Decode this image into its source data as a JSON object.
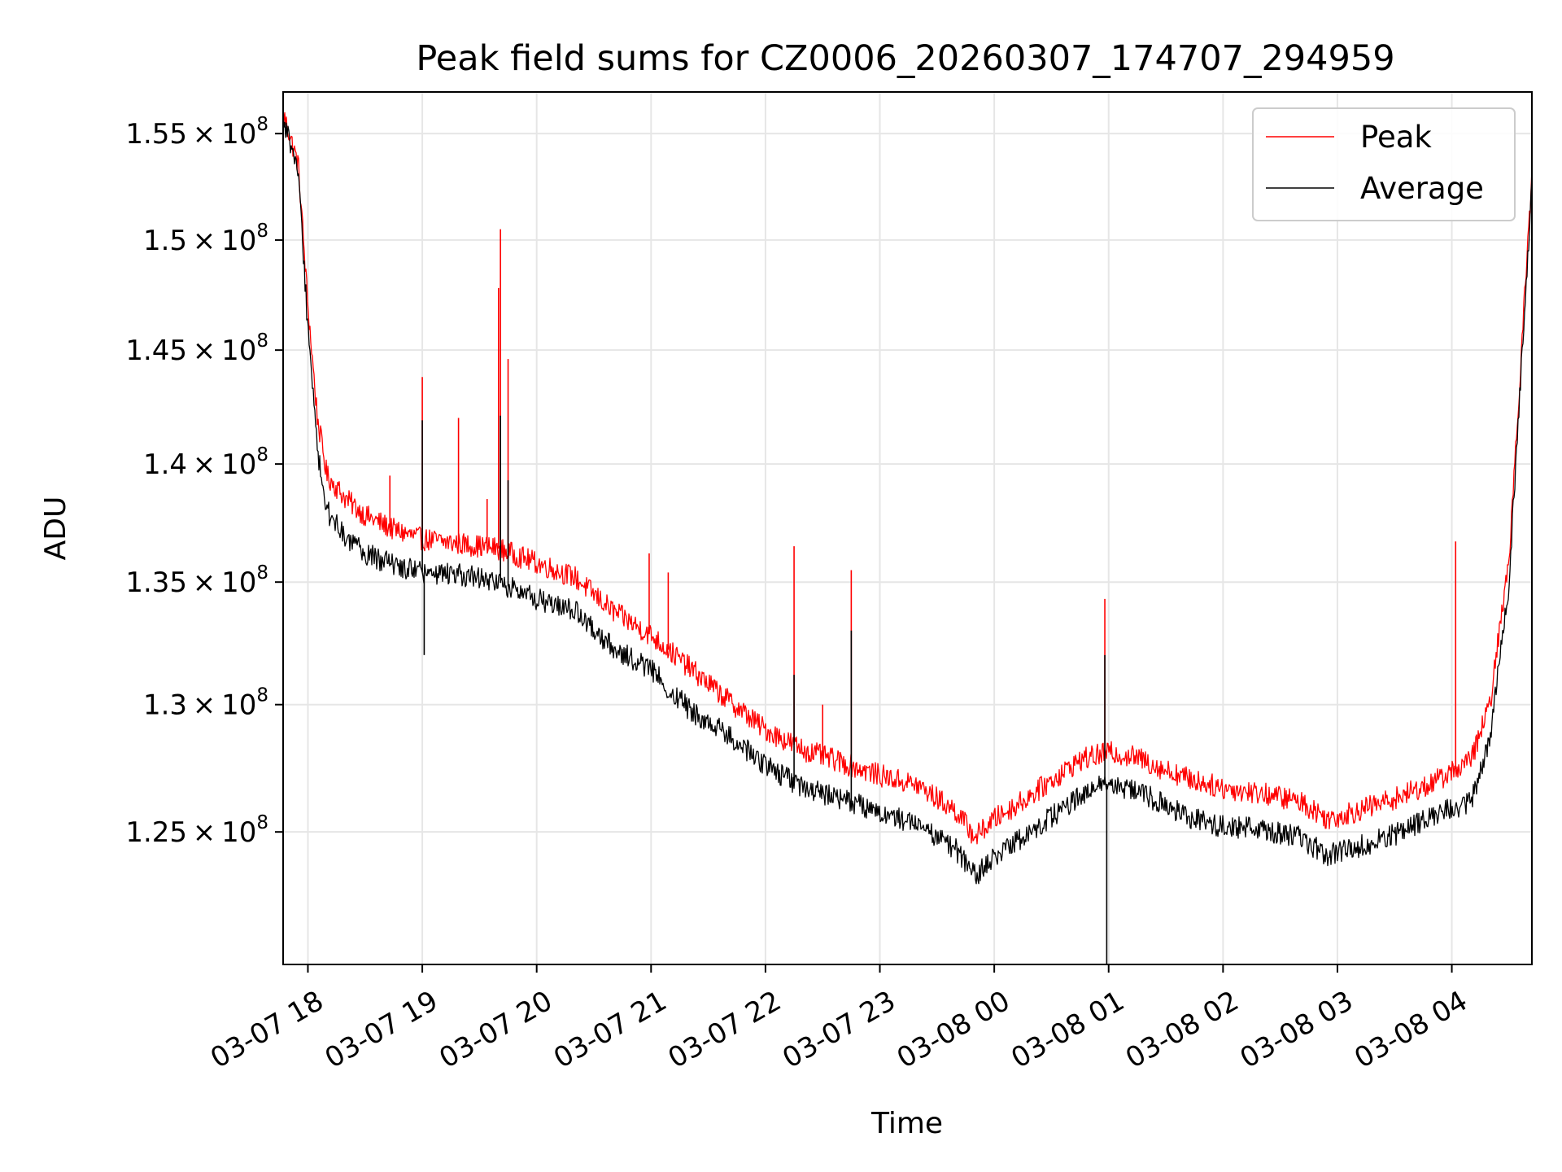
{
  "chart_data": {
    "type": "line",
    "title": "Peak field sums for CZ0006_20260307_174707_294959",
    "xlabel": "Time",
    "ylabel": "ADU",
    "y_scale": "log",
    "ylim": [
      120000000,
      157000000
    ],
    "xlim": [
      "2026-03-07 17:47",
      "2026-03-08 04:42"
    ],
    "x_ticks": [
      {
        "t": "2026-03-07 18:00",
        "label": "03-07 18"
      },
      {
        "t": "2026-03-07 19:00",
        "label": "03-07 19"
      },
      {
        "t": "2026-03-07 20:00",
        "label": "03-07 20"
      },
      {
        "t": "2026-03-07 21:00",
        "label": "03-07 21"
      },
      {
        "t": "2026-03-07 22:00",
        "label": "03-07 22"
      },
      {
        "t": "2026-03-07 23:00",
        "label": "03-07 23"
      },
      {
        "t": "2026-03-08 00:00",
        "label": "03-08 00"
      },
      {
        "t": "2026-03-08 01:00",
        "label": "03-08 01"
      },
      {
        "t": "2026-03-08 02:00",
        "label": "03-08 02"
      },
      {
        "t": "2026-03-08 03:00",
        "label": "03-08 03"
      },
      {
        "t": "2026-03-08 04:00",
        "label": "03-08 04"
      }
    ],
    "y_ticks": [
      {
        "v": 125000000,
        "mant": "1.25",
        "exp": "8"
      },
      {
        "v": 130000000,
        "mant": "1.3",
        "exp": "8"
      },
      {
        "v": 135000000,
        "mant": "1.35",
        "exp": "8"
      },
      {
        "v": 140000000,
        "mant": "1.4",
        "exp": "8"
      },
      {
        "v": 145000000,
        "mant": "1.45",
        "exp": "8"
      },
      {
        "v": 150000000,
        "mant": "1.5",
        "exp": "8"
      },
      {
        "v": 155000000,
        "mant": "1.55",
        "exp": "8"
      }
    ],
    "grid": true,
    "legend_position": "top-right",
    "series": [
      {
        "name": "Peak",
        "color": "#ff0000",
        "points": [
          [
            "2026-03-07 17:47",
            156000000
          ],
          [
            "2026-03-07 17:55",
            153500000
          ],
          [
            "2026-03-07 18:00",
            147000000
          ],
          [
            "2026-03-07 18:05",
            142000000
          ],
          [
            "2026-03-07 18:10",
            139500000
          ],
          [
            "2026-03-07 18:20",
            138500000
          ],
          [
            "2026-03-07 18:30",
            137800000
          ],
          [
            "2026-03-07 18:45",
            137200000
          ],
          [
            "2026-03-07 19:00",
            136800000
          ],
          [
            "2026-03-07 19:20",
            136600000
          ],
          [
            "2026-03-07 19:40",
            136400000
          ],
          [
            "2026-03-07 20:00",
            135800000
          ],
          [
            "2026-03-07 20:20",
            135200000
          ],
          [
            "2026-03-07 20:40",
            133800000
          ],
          [
            "2026-03-07 21:00",
            132800000
          ],
          [
            "2026-03-07 21:20",
            131500000
          ],
          [
            "2026-03-07 21:40",
            130200000
          ],
          [
            "2026-03-07 22:00",
            129000000
          ],
          [
            "2026-03-07 22:20",
            128200000
          ],
          [
            "2026-03-07 22:40",
            127700000
          ],
          [
            "2026-03-07 23:00",
            127200000
          ],
          [
            "2026-03-07 23:20",
            126800000
          ],
          [
            "2026-03-07 23:40",
            125800000
          ],
          [
            "2026-03-07 23:50",
            124800000
          ],
          [
            "2026-03-08 00:00",
            125500000
          ],
          [
            "2026-03-08 00:15",
            126200000
          ],
          [
            "2026-03-08 00:30",
            127000000
          ],
          [
            "2026-03-08 00:45",
            127800000
          ],
          [
            "2026-03-08 01:00",
            128100000
          ],
          [
            "2026-03-08 01:15",
            127900000
          ],
          [
            "2026-03-08 01:30",
            127400000
          ],
          [
            "2026-03-08 01:45",
            127000000
          ],
          [
            "2026-03-08 02:00",
            126700000
          ],
          [
            "2026-03-08 02:20",
            126500000
          ],
          [
            "2026-03-08 02:40",
            126200000
          ],
          [
            "2026-03-08 02:55",
            125500000
          ],
          [
            "2026-03-08 03:10",
            125800000
          ],
          [
            "2026-03-08 03:30",
            126300000
          ],
          [
            "2026-03-08 03:50",
            126900000
          ],
          [
            "2026-03-08 04:10",
            127800000
          ],
          [
            "2026-03-08 04:20",
            130000000
          ],
          [
            "2026-03-08 04:30",
            136000000
          ],
          [
            "2026-03-08 04:42",
            153000000
          ]
        ],
        "spikes": [
          [
            "2026-03-07 18:43",
            139500000
          ],
          [
            "2026-03-07 19:00",
            143800000
          ],
          [
            "2026-03-07 19:19",
            142000000
          ],
          [
            "2026-03-07 19:34",
            138500000
          ],
          [
            "2026-03-07 19:40",
            147800000
          ],
          [
            "2026-03-07 19:41",
            150500000
          ],
          [
            "2026-03-07 19:45",
            144600000
          ],
          [
            "2026-03-07 20:59",
            136200000
          ],
          [
            "2026-03-07 21:09",
            135400000
          ],
          [
            "2026-03-07 22:15",
            136500000
          ],
          [
            "2026-03-07 22:30",
            130000000
          ],
          [
            "2026-03-07 22:45",
            135500000
          ],
          [
            "2026-03-08 00:58",
            134300000
          ],
          [
            "2026-03-08 04:02",
            136700000
          ]
        ]
      },
      {
        "name": "Average",
        "color": "#000000",
        "points": [
          [
            "2026-03-07 17:47",
            155800000
          ],
          [
            "2026-03-07 17:55",
            153000000
          ],
          [
            "2026-03-07 18:00",
            146000000
          ],
          [
            "2026-03-07 18:05",
            140500000
          ],
          [
            "2026-03-07 18:10",
            138000000
          ],
          [
            "2026-03-07 18:20",
            136800000
          ],
          [
            "2026-03-07 18:30",
            136200000
          ],
          [
            "2026-03-07 18:45",
            135700000
          ],
          [
            "2026-03-07 19:00",
            135400000
          ],
          [
            "2026-03-07 19:20",
            135300000
          ],
          [
            "2026-03-07 19:40",
            135000000
          ],
          [
            "2026-03-07 20:00",
            134300000
          ],
          [
            "2026-03-07 20:20",
            133800000
          ],
          [
            "2026-03-07 20:40",
            132300000
          ],
          [
            "2026-03-07 21:00",
            131400000
          ],
          [
            "2026-03-07 21:20",
            129800000
          ],
          [
            "2026-03-07 21:40",
            128800000
          ],
          [
            "2026-03-07 22:00",
            127600000
          ],
          [
            "2026-03-07 22:20",
            126700000
          ],
          [
            "2026-03-07 22:40",
            126300000
          ],
          [
            "2026-03-07 23:00",
            125800000
          ],
          [
            "2026-03-07 23:20",
            125300000
          ],
          [
            "2026-03-07 23:40",
            124300000
          ],
          [
            "2026-03-07 23:50",
            123300000
          ],
          [
            "2026-03-08 00:00",
            124000000
          ],
          [
            "2026-03-08 00:15",
            124800000
          ],
          [
            "2026-03-08 00:30",
            125600000
          ],
          [
            "2026-03-08 00:45",
            126400000
          ],
          [
            "2026-03-08 01:00",
            126900000
          ],
          [
            "2026-03-08 01:15",
            126600000
          ],
          [
            "2026-03-08 01:30",
            126000000
          ],
          [
            "2026-03-08 01:45",
            125500000
          ],
          [
            "2026-03-08 02:00",
            125200000
          ],
          [
            "2026-03-08 02:20",
            125100000
          ],
          [
            "2026-03-08 02:40",
            124800000
          ],
          [
            "2026-03-08 02:55",
            124100000
          ],
          [
            "2026-03-08 03:10",
            124400000
          ],
          [
            "2026-03-08 03:30",
            124900000
          ],
          [
            "2026-03-08 03:50",
            125600000
          ],
          [
            "2026-03-08 04:10",
            126200000
          ],
          [
            "2026-03-08 04:20",
            128500000
          ],
          [
            "2026-03-08 04:30",
            135000000
          ],
          [
            "2026-03-08 04:42",
            152500000
          ]
        ],
        "spikes": [
          [
            "2026-03-07 19:00",
            141900000
          ],
          [
            "2026-03-07 19:01",
            132000000
          ],
          [
            "2026-03-07 19:41",
            142100000
          ],
          [
            "2026-03-07 19:45",
            139300000
          ],
          [
            "2026-03-07 22:15",
            131200000
          ],
          [
            "2026-03-07 22:45",
            133000000
          ],
          [
            "2026-03-08 00:58",
            132000000
          ],
          [
            "2026-03-08 00:59",
            120000000
          ]
        ]
      }
    ]
  }
}
